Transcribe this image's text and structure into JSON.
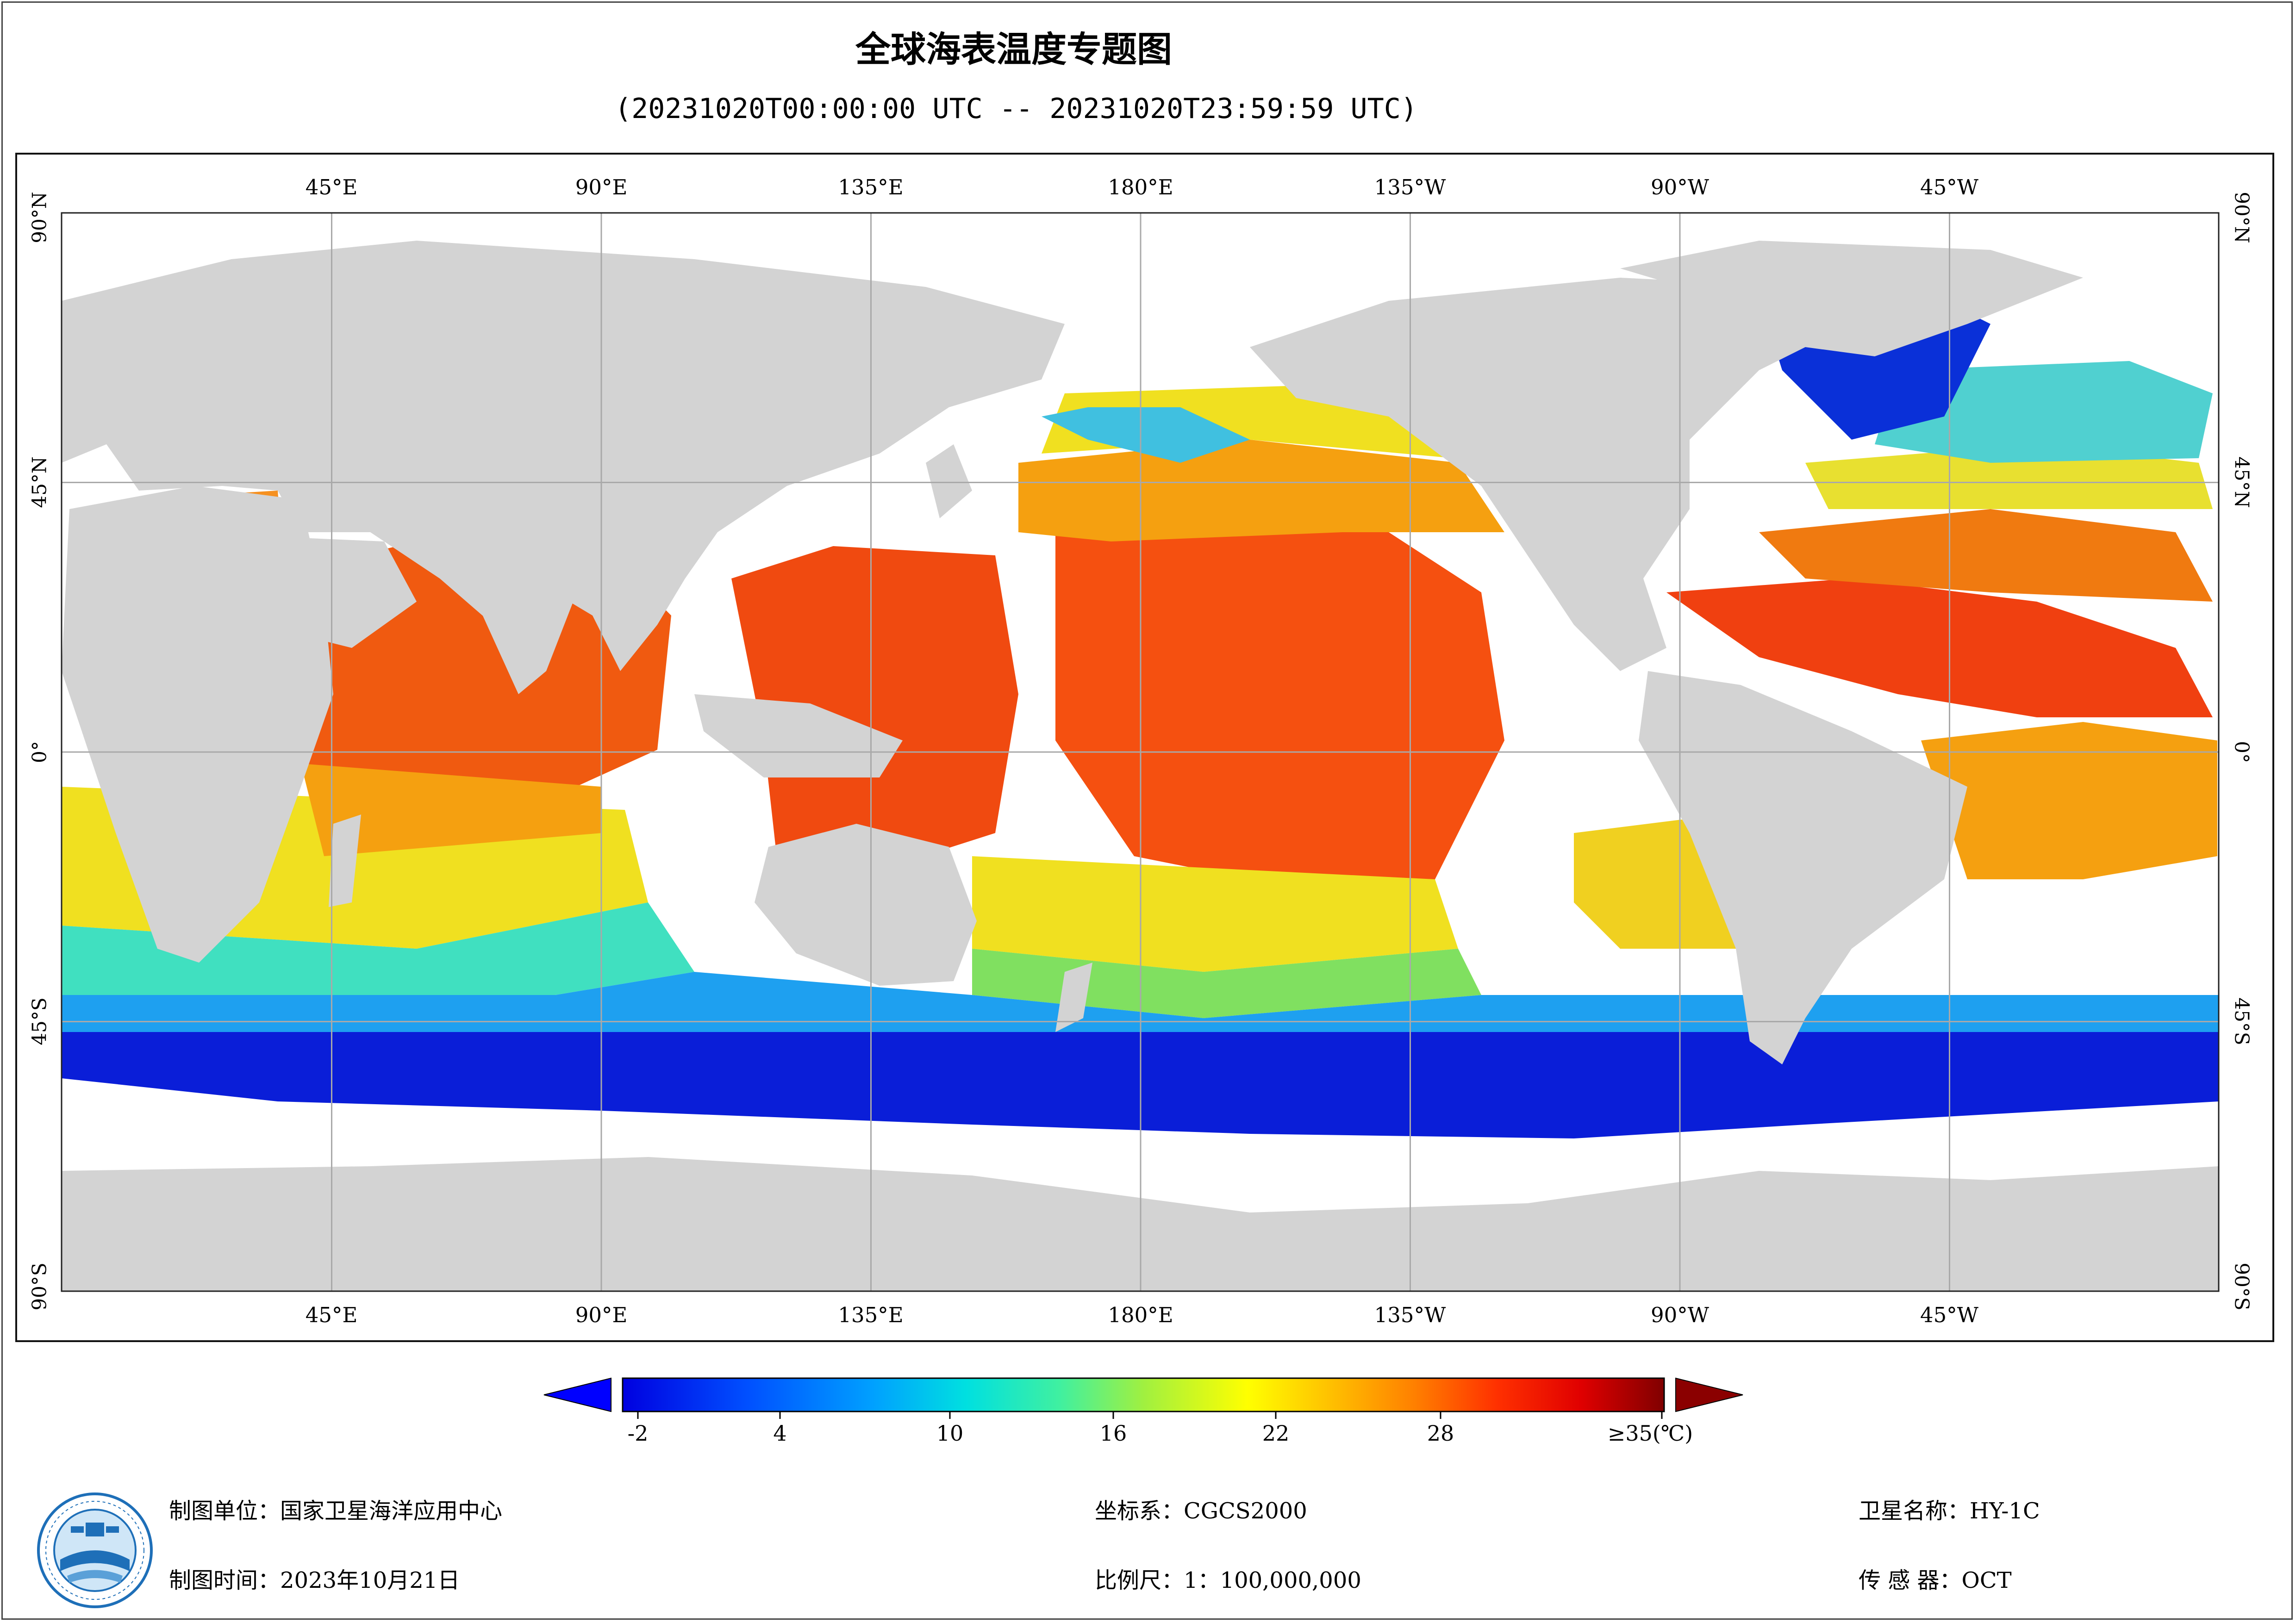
{
  "title": "全球海表温度专题图",
  "subtitle": "(20231020T00:00:00 UTC -- 20231020T23:59:59 UTC)",
  "map": {
    "top_lon_labels": [
      "45°E",
      "90°E",
      "135°E",
      "180°E",
      "135°W",
      "90°W",
      "45°W"
    ],
    "bottom_lon_labels": [
      "45°E",
      "90°E",
      "135°E",
      "180°E",
      "135°W",
      "90°W",
      "45°W"
    ],
    "lat_labels": [
      "90°N",
      "45°N",
      "0°",
      "45°S",
      "90°S"
    ],
    "colors": {
      "land": "#d3d3d3",
      "no_data": "#ffffff",
      "grid": "#a9a9a9",
      "cold": "#0a1ed8",
      "cool": "#1ea0f0",
      "mild": "#40e0c0",
      "warm": "#f0f020",
      "hot": "#f5a010",
      "very_hot": "#f04010"
    }
  },
  "legend": {
    "tick_labels": [
      "-2",
      "4",
      "10",
      "16",
      "22",
      "28",
      "≥35(℃)"
    ],
    "min": -2,
    "max": 35,
    "colors": [
      "#0000e0",
      "#0050ff",
      "#00a0ff",
      "#00e0e0",
      "#40f0a0",
      "#a0f040",
      "#ffff00",
      "#ffc000",
      "#ff8000",
      "#ff3000",
      "#e00000",
      "#a00000",
      "#800000"
    ],
    "under_color": "#0000ff",
    "over_color": "#8b0000"
  },
  "footer": {
    "unit_label": "制图单位：国家卫星海洋应用中心",
    "time_label": "制图时间：2023年10月21日",
    "crs_label": "坐标系：CGCS2000",
    "scale_label": "比例尺：1：100,000,000",
    "satellite_label": "卫星名称：HY-1C",
    "sensor_label": "传 感 器：OCT"
  }
}
